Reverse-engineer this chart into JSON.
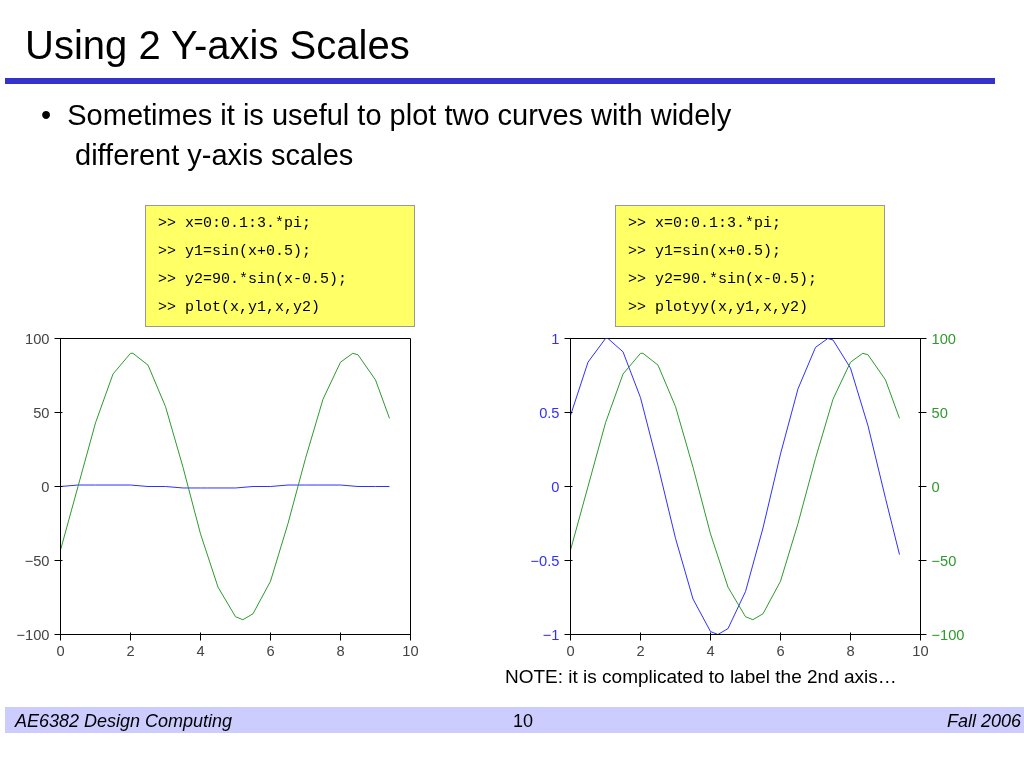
{
  "chart_data": [
    {
      "type": "line",
      "title": "Using 2 Y-axis Scales",
      "subtitle": "•  Sometimes it is useful to plot two curves with widely different y-axis scales",
      "annotations": [
        ">> x=0:0.1:3.*pi;\n>> y1=sin(x+0.5);\n>> y2=90.*sin(x-0.5);\n>> plot(x,y1,x,y2)"
      ],
      "xlim": [
        0,
        10
      ],
      "xticks": [
        0,
        2,
        4,
        6,
        8,
        10
      ],
      "ylim": [
        -100,
        100
      ],
      "yticks": [
        -100,
        -50,
        0,
        50,
        100
      ],
      "grid": false,
      "series": [
        {
          "color": "#3030ff",
          "x": [
            0,
            0.5,
            1,
            1.07,
            1.5,
            2,
            2.5,
            3,
            3.5,
            4,
            4.21,
            4.5,
            5,
            5.5,
            6,
            6.5,
            7,
            7.35,
            7.5,
            8,
            8.5,
            9,
            9.4
          ],
          "values": [
            0,
            1,
            1,
            1,
            1,
            1,
            0,
            0,
            -1,
            -1,
            -1,
            -1,
            -1,
            0,
            0,
            1,
            1,
            1,
            1,
            1,
            0,
            0,
            0
          ]
        },
        {
          "color": "#2e9a2e",
          "x": [
            0,
            0.5,
            1,
            1.5,
            2,
            2.07,
            2.5,
            3,
            3.5,
            4,
            4.5,
            5,
            5.21,
            5.5,
            6,
            6.5,
            7,
            7.5,
            8,
            8.35,
            8.5,
            9,
            9.4
          ],
          "values": [
            -43,
            0,
            43,
            76,
            90,
            90,
            82,
            54,
            13,
            -32,
            -68,
            -88,
            -90,
            -86,
            -64,
            -25,
            19,
            59,
            84,
            90,
            89,
            72,
            46
          ]
        }
      ]
    },
    {
      "type": "line",
      "annotations": [
        ">> x=0:0.1:3.*pi;\n>> y1=sin(x+0.5);\n>> y2=90.*sin(x-0.5);\n>> plotyy(x,y1,x,y2)",
        "NOTE: it is complicated to label the 2nd axis…",
        "AE6382 Design Computing",
        "10",
        "Fall 2006"
      ],
      "xlim": [
        0,
        10
      ],
      "xticks": [
        0,
        2,
        4,
        6,
        8,
        10
      ],
      "ylim": [
        -1,
        1
      ],
      "yticks": [
        -1,
        -0.5,
        0,
        0.5,
        1
      ],
      "y2lim": [
        -100,
        100
      ],
      "y2ticks": [
        -100,
        -50,
        0,
        50,
        100
      ],
      "grid": false,
      "series": [
        {
          "color": "#3030ff",
          "x": [
            0,
            0.5,
            1,
            1.07,
            1.5,
            2,
            2.5,
            3,
            3.5,
            4,
            4.21,
            4.5,
            5,
            5.5,
            6,
            6.5,
            7,
            7.35,
            7.5,
            8,
            8.5,
            9,
            9.4
          ],
          "values": [
            0.48,
            0.84,
            1.0,
            1.0,
            0.91,
            0.6,
            0.14,
            -0.35,
            -0.76,
            -0.98,
            -1.0,
            -0.96,
            -0.71,
            -0.28,
            0.22,
            0.66,
            0.94,
            1.0,
            0.99,
            0.8,
            0.41,
            -0.08,
            -0.46
          ]
        },
        {
          "color": "#2e9a2e",
          "axis": "y2",
          "x": [
            0,
            0.5,
            1,
            1.5,
            2,
            2.07,
            2.5,
            3,
            3.5,
            4,
            4.5,
            5,
            5.21,
            5.5,
            6,
            6.5,
            7,
            7.5,
            8,
            8.35,
            8.5,
            9,
            9.4
          ],
          "values": [
            -43,
            0,
            43,
            76,
            90,
            90,
            82,
            54,
            13,
            -32,
            -68,
            -88,
            -90,
            -86,
            -64,
            -25,
            19,
            59,
            84,
            90,
            89,
            72,
            46
          ]
        }
      ]
    }
  ]
}
